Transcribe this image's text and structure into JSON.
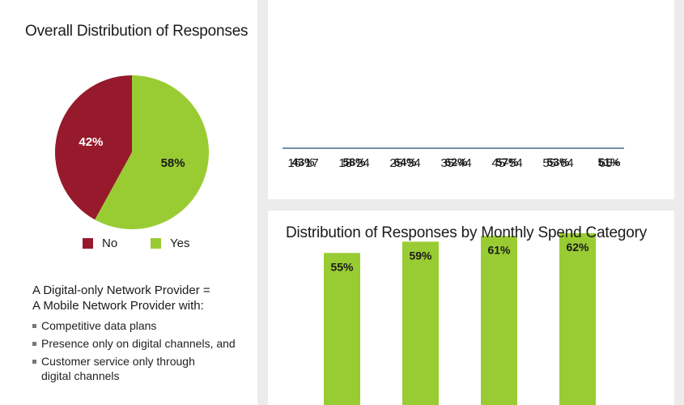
{
  "pie_panel": {
    "title": "Overall Distribution of Responses",
    "legend": [
      {
        "label": "No",
        "color": "#961a2c"
      },
      {
        "label": "Yes",
        "color": "#99cc33"
      }
    ]
  },
  "definition": {
    "heading_line1": "A Digital-only Network Provider =",
    "heading_line2": "A Mobile Network Provider with:",
    "bullets": [
      "Competitive data plans",
      "Presence only on digital channels, and",
      "Customer service only through",
      "digital channels"
    ]
  },
  "spend_panel": {
    "title": "Distribution of Responses by Monthly Spend Category"
  },
  "colors": {
    "green": "#99cc33",
    "red": "#961a2c",
    "axis": "#4a6a8a"
  },
  "chart_data": [
    {
      "type": "pie",
      "title": "Overall Distribution of Responses",
      "labels": [
        "No",
        "Yes"
      ],
      "values": [
        42,
        58
      ],
      "value_labels": [
        "42%",
        "58%"
      ],
      "colors": [
        "#961a2c",
        "#99cc33"
      ],
      "legend": "bottom"
    },
    {
      "type": "bar",
      "categories": [
        "16-17",
        "18-24",
        "25-34",
        "35-44",
        "45-54",
        "55-64",
        "65+"
      ],
      "values": [
        43,
        58,
        64,
        62,
        57,
        53,
        51
      ],
      "value_labels": [
        "43%",
        "58%",
        "64%",
        "62%",
        "57%",
        "53%",
        "51%"
      ],
      "ylim": [
        0,
        70
      ],
      "grid": false
    },
    {
      "type": "bar",
      "title": "Distribution of Responses by Monthly Spend Category",
      "values": [
        55,
        59,
        61,
        62
      ],
      "value_labels": [
        "55%",
        "59%",
        "61%",
        "62%"
      ],
      "ylim": [
        0,
        70
      ],
      "grid": false
    }
  ]
}
